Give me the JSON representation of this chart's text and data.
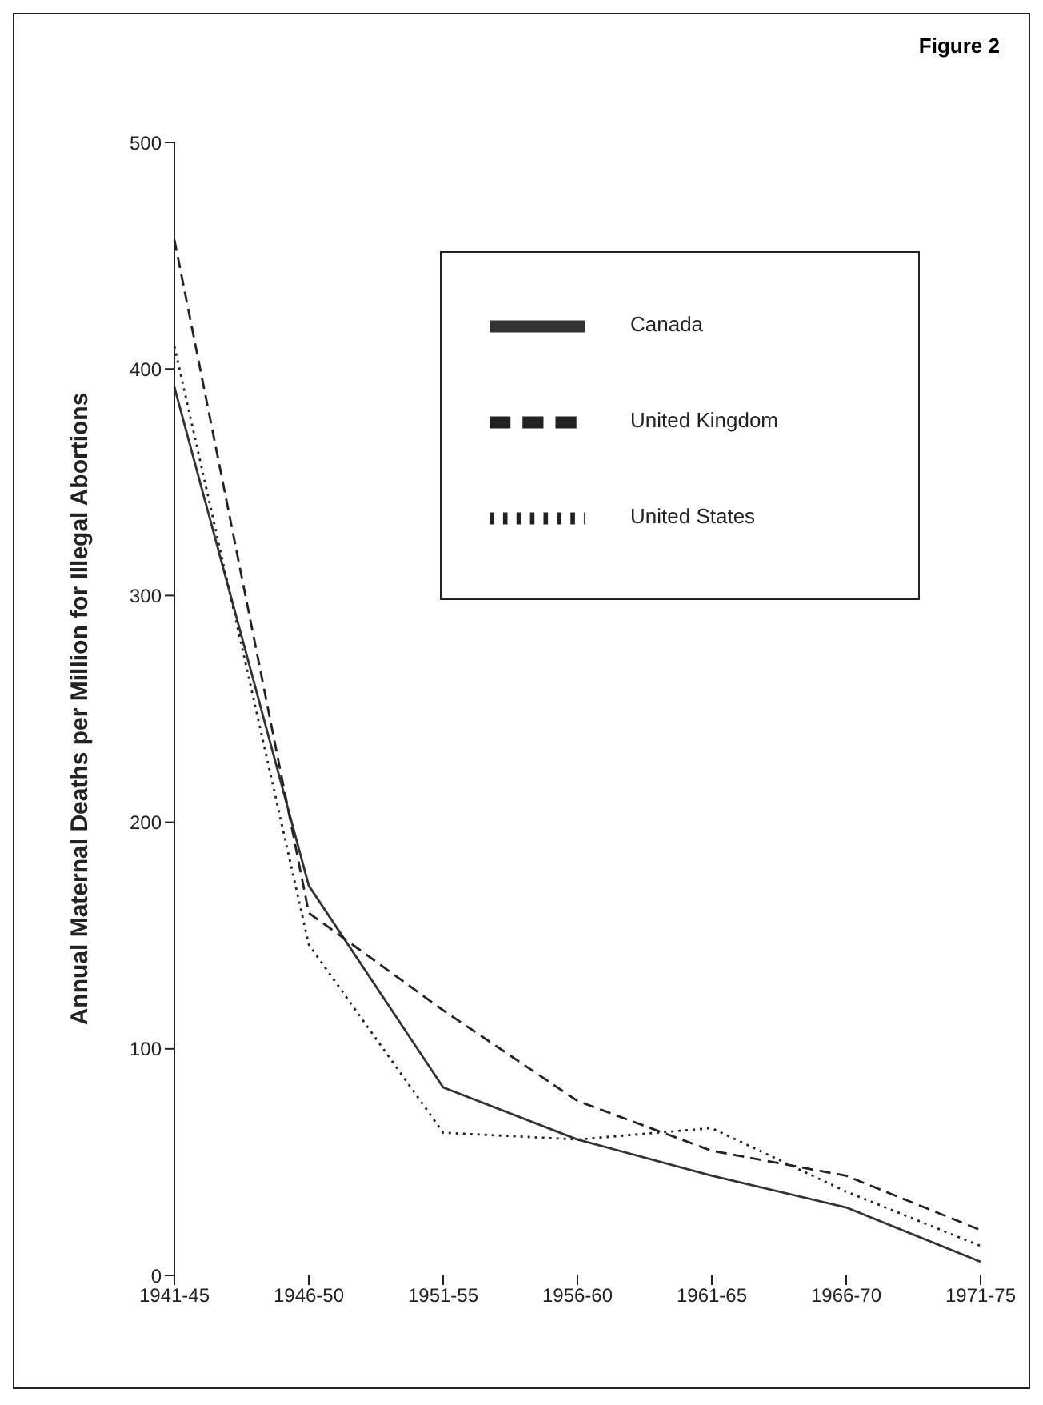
{
  "chart_data": {
    "type": "line",
    "title": "Figure 2",
    "ylabel": "Annual Maternal Deaths per Million for Illegal Abortions",
    "categories": [
      "1941-45",
      "1946-50",
      "1951-55",
      "1956-60",
      "1961-65",
      "1966-70",
      "1971-75"
    ],
    "series": [
      {
        "name": "Canada",
        "color": "#333333",
        "line_style": "solid",
        "values": [
          392,
          172,
          83,
          60,
          44,
          30,
          6
        ]
      },
      {
        "name": "United Kingdom",
        "color": "#222222",
        "line_style": "dashed",
        "values": [
          457,
          160,
          117,
          77,
          55,
          44,
          20
        ]
      },
      {
        "name": "United States",
        "color": "#222222",
        "line_style": "dotted",
        "values": [
          410,
          146,
          63,
          60,
          65,
          37,
          13
        ]
      }
    ],
    "ylim": [
      0,
      500
    ],
    "yticks": [
      0,
      100,
      200,
      300,
      400,
      500
    ],
    "grid": false,
    "legend": "top right",
    "marker": "none"
  }
}
